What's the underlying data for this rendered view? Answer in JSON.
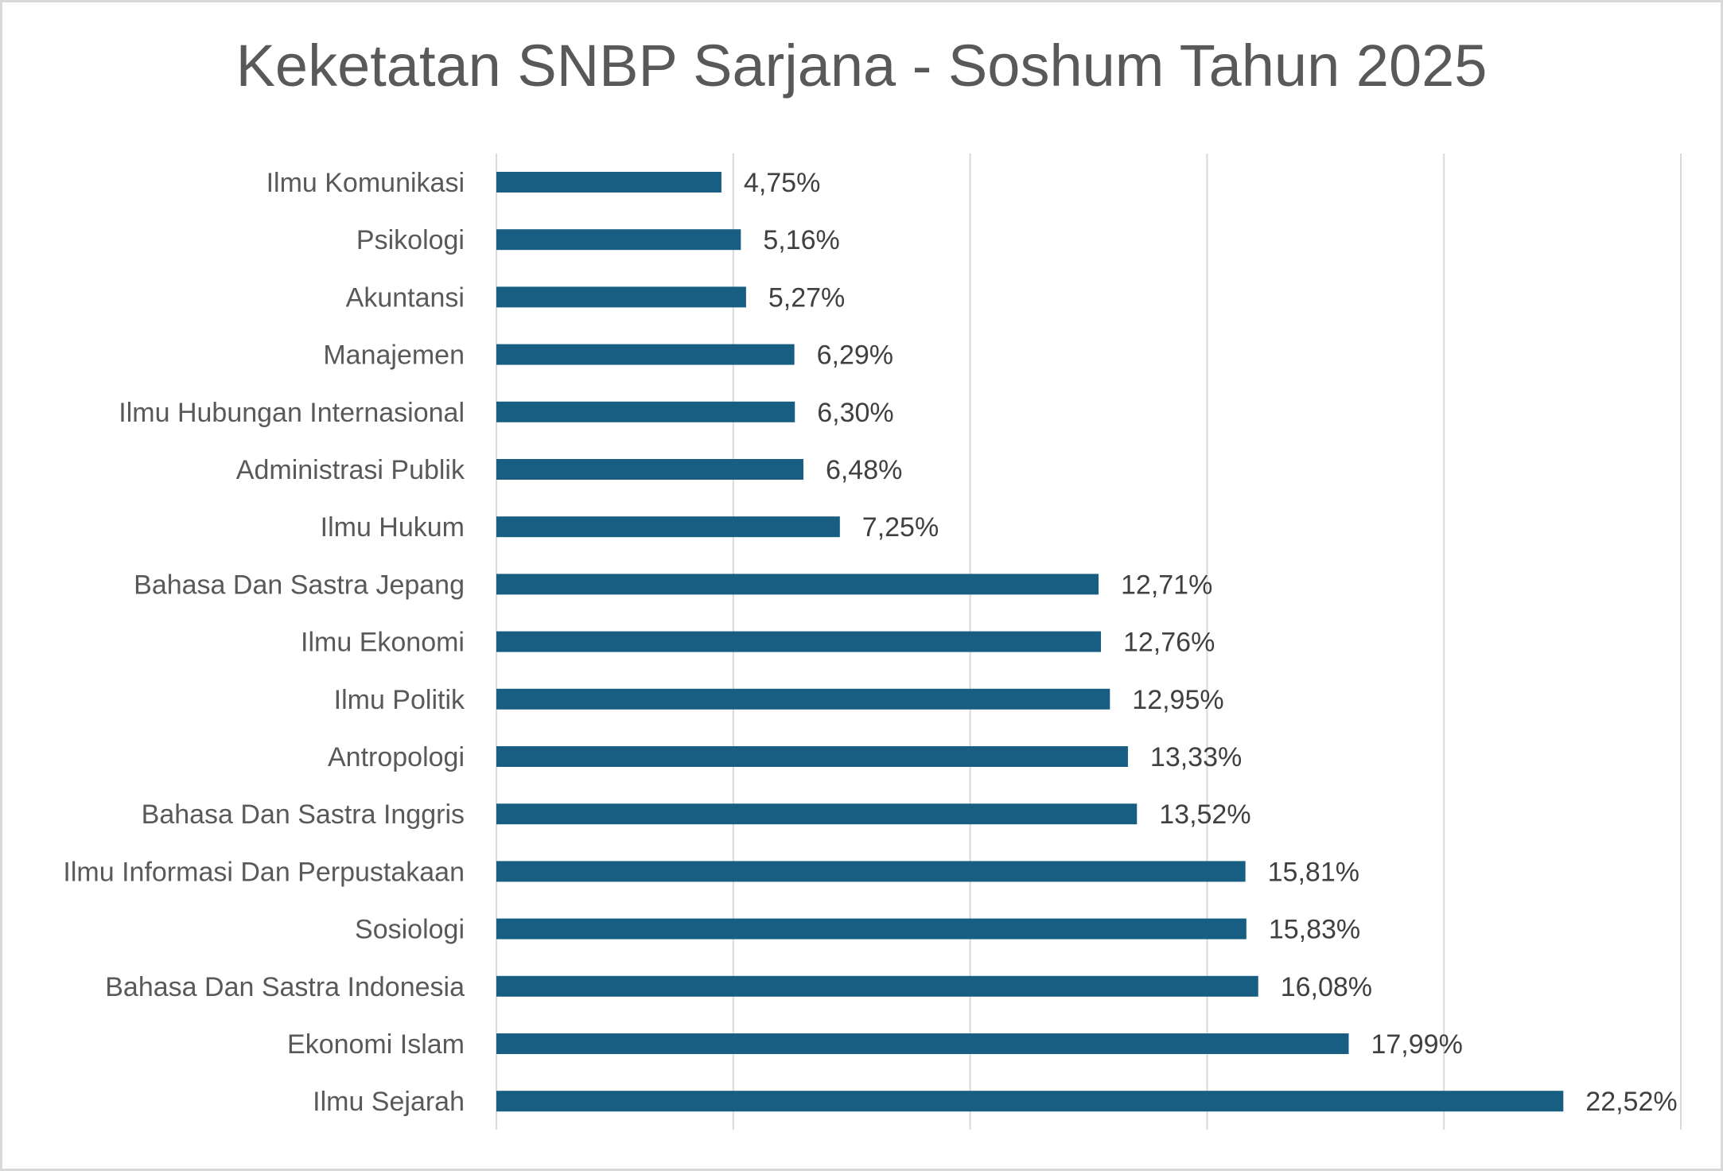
{
  "chart_data": {
    "type": "bar",
    "orientation": "horizontal",
    "title": "Keketatan SNBP Sarjana - Soshum Tahun 2025",
    "xlabel": "",
    "ylabel": "",
    "xlim": [
      0,
      25
    ],
    "grid": true,
    "gridline_step": 5,
    "legend": "none",
    "bar_color": "#175E82",
    "categories": [
      "Ilmu Komunikasi",
      "Psikologi",
      "Akuntansi",
      "Manajemen",
      "Ilmu Hubungan Internasional",
      "Administrasi Publik",
      "Ilmu Hukum",
      "Bahasa Dan Sastra Jepang",
      "Ilmu Ekonomi",
      "Ilmu Politik",
      "Antropologi",
      "Bahasa Dan Sastra Inggris",
      "Ilmu Informasi Dan Perpustakaan",
      "Sosiologi",
      "Bahasa Dan Sastra Indonesia",
      "Ekonomi Islam",
      "Ilmu Sejarah"
    ],
    "values": [
      4.75,
      5.16,
      5.27,
      6.29,
      6.3,
      6.48,
      7.25,
      12.71,
      12.76,
      12.95,
      13.33,
      13.52,
      15.81,
      15.83,
      16.08,
      17.99,
      22.52
    ],
    "data_labels": [
      "4,75%",
      "5,16%",
      "5,27%",
      "6,29%",
      "6,30%",
      "6,48%",
      "7,25%",
      "12,71%",
      "12,76%",
      "12,95%",
      "13,33%",
      "13,52%",
      "15,81%",
      "15,83%",
      "16,08%",
      "17,99%",
      "22,52%"
    ]
  }
}
